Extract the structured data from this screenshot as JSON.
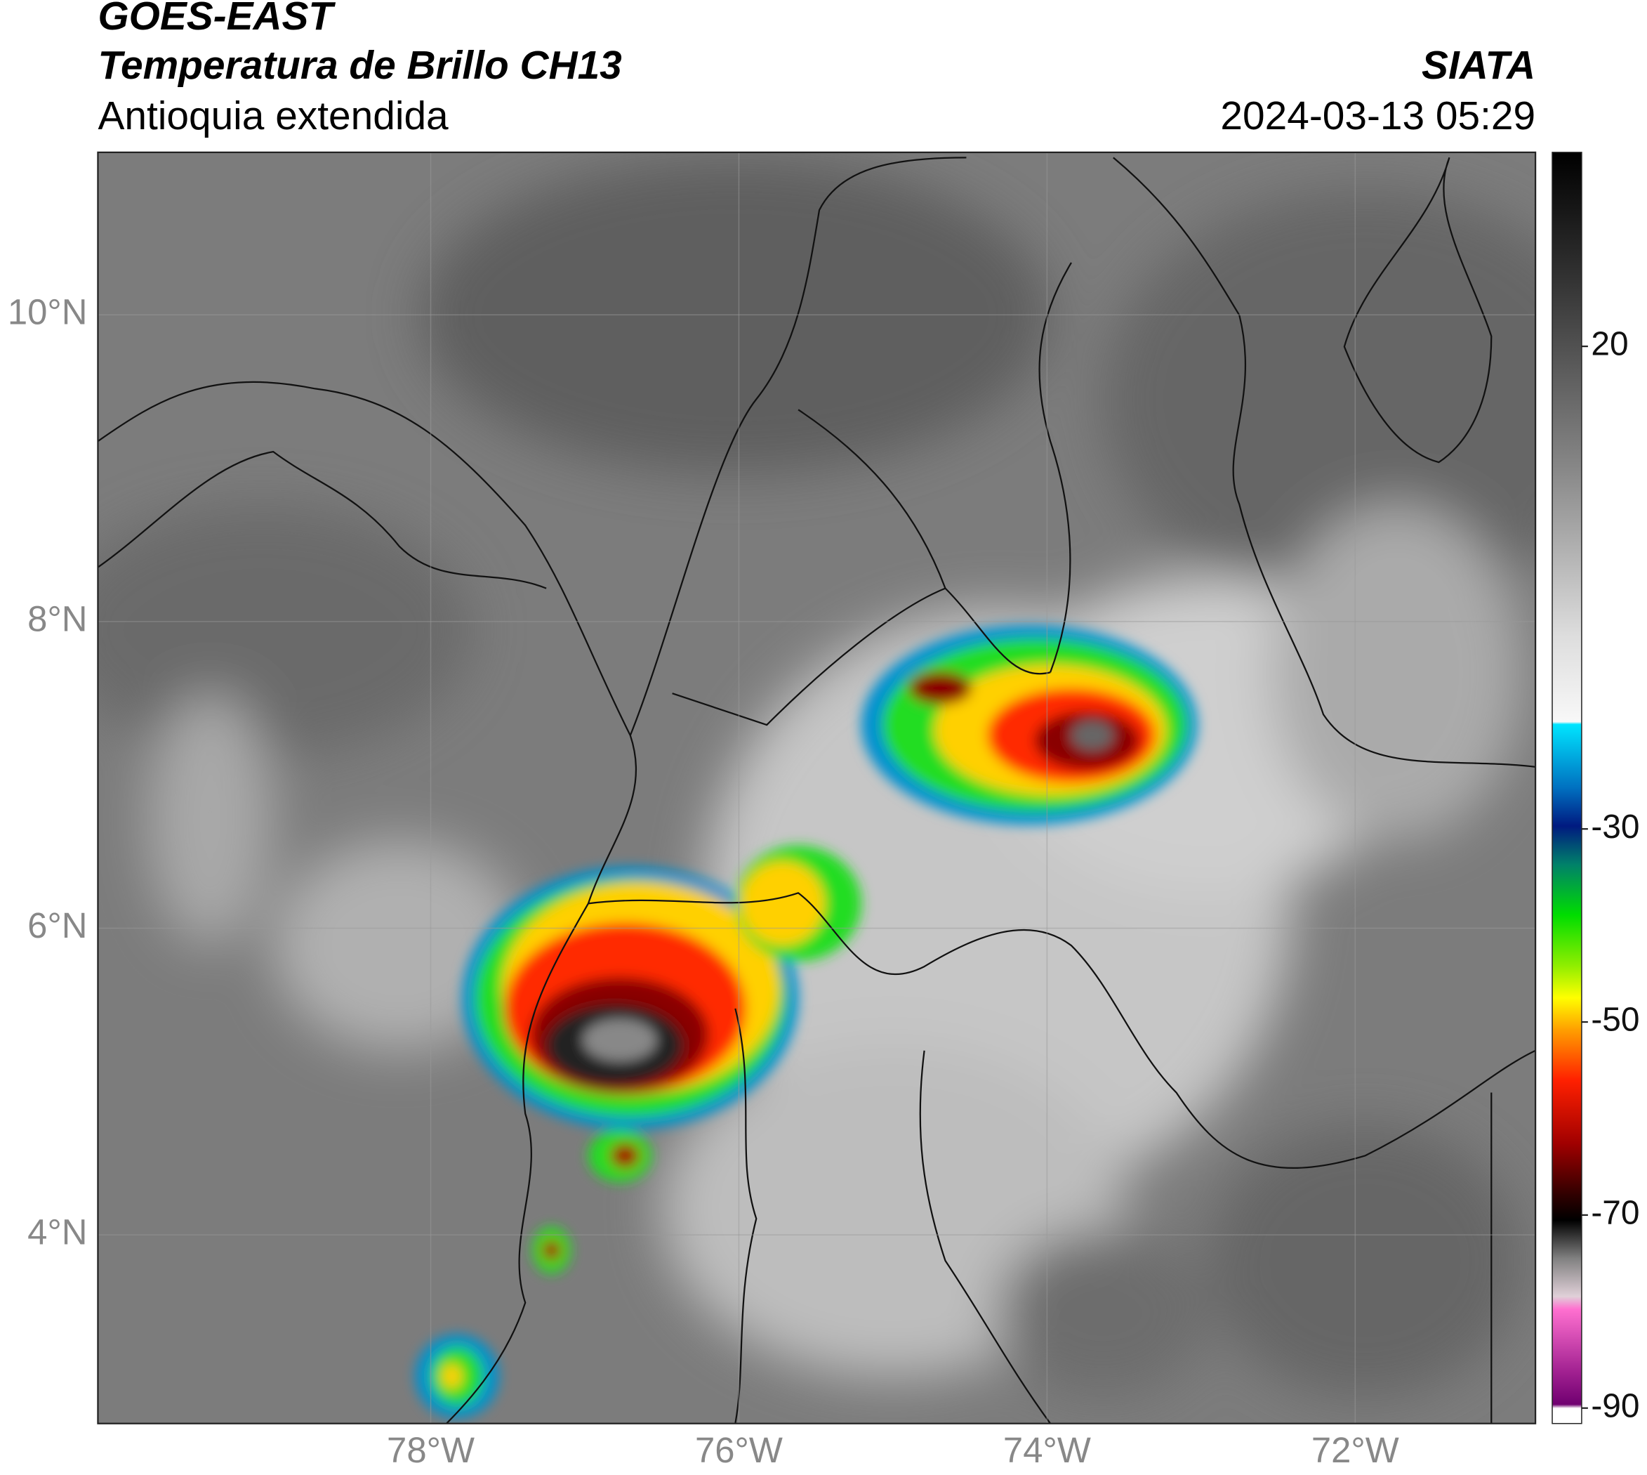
{
  "header": {
    "satellite": "GOES-EAST",
    "product": "Temperatura de Brillo CH13",
    "region": "Antioquia extendida",
    "source": "SIATA",
    "datetime": "2024-03-13 05:29"
  },
  "map": {
    "xlim": [
      -80.16,
      -70.83
    ],
    "ylim": [
      2.77,
      11.06
    ],
    "xticks": [
      {
        "value": -78,
        "label": "78°W"
      },
      {
        "value": -76,
        "label": "76°W"
      },
      {
        "value": -74,
        "label": "74°W"
      },
      {
        "value": -72,
        "label": "72°W"
      }
    ],
    "yticks": [
      {
        "value": 4,
        "label": "4°N"
      },
      {
        "value": 6,
        "label": "6°N"
      },
      {
        "value": 8,
        "label": "8°N"
      },
      {
        "value": 10,
        "label": "10°N"
      }
    ],
    "grid": true
  },
  "colorbar": {
    "lim": [
      -91.6,
      40.1
    ],
    "ticks": [
      -90,
      -70,
      -50,
      -30,
      20
    ]
  }
}
